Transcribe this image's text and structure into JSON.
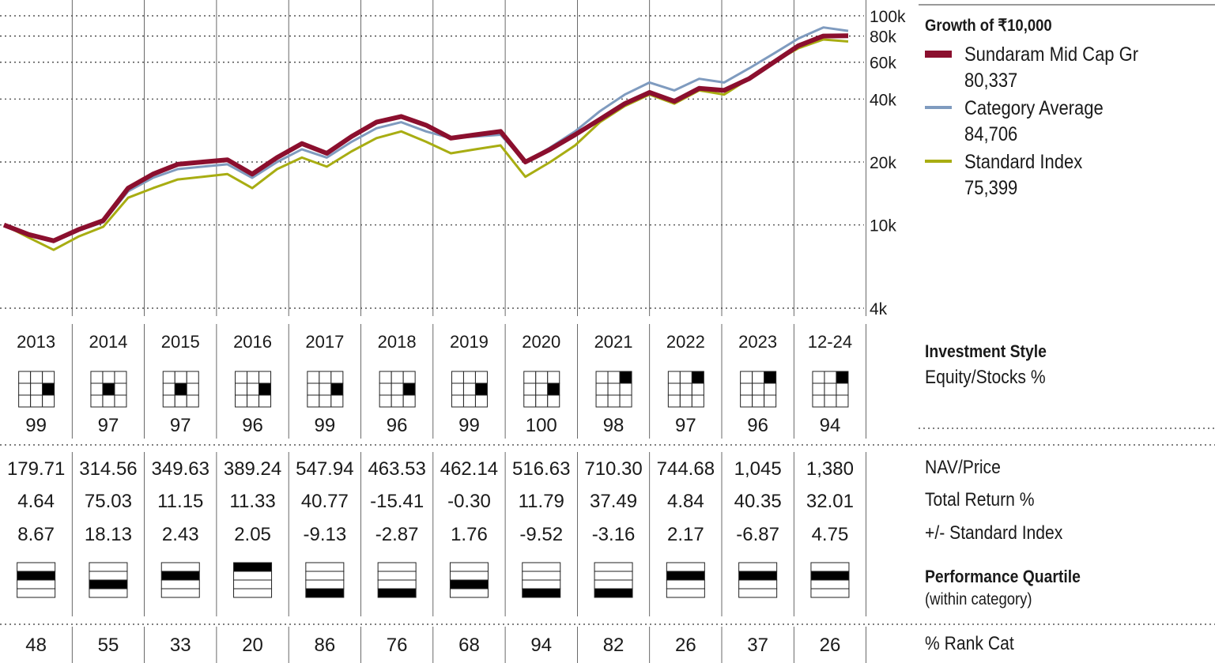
{
  "chart_data": {
    "type": "line",
    "title": "Growth of ₹10,000",
    "y_scale": "log",
    "ylim": [
      4000,
      100000
    ],
    "y_ticks": [
      100000,
      80000,
      60000,
      40000,
      20000,
      10000,
      4000
    ],
    "y_tick_labels": [
      "100k",
      "80k",
      "60k",
      "40k",
      "20k",
      "10k",
      "4k"
    ],
    "grid": "dotted horizontal at ticks, vertical year separators",
    "legend_placement": "right",
    "series": [
      {
        "name": "Sundaram Mid Cap Gr",
        "final_value": "80,337",
        "color": "#8b0f2e",
        "values": [
          10000,
          9000,
          8400,
          9500,
          10500,
          15000,
          17500,
          19500,
          20000,
          20500,
          17500,
          21000,
          24500,
          22000,
          26500,
          31000,
          33000,
          30000,
          26000,
          27000,
          28000,
          20000,
          23000,
          27000,
          32000,
          38000,
          43000,
          39000,
          45000,
          44000,
          50000,
          60000,
          72000,
          80000,
          80337
        ]
      },
      {
        "name": "Category Average",
        "final_value": "84,706",
        "color": "#7f9bbf",
        "values": [
          10000,
          8900,
          8300,
          9400,
          10300,
          14500,
          16800,
          18500,
          19000,
          19500,
          16800,
          20000,
          23000,
          21000,
          25000,
          29000,
          31000,
          28000,
          26000,
          26500,
          27000,
          20000,
          23500,
          28000,
          35000,
          42000,
          48000,
          44000,
          50000,
          48000,
          56000,
          66000,
          78000,
          88000,
          84706
        ]
      },
      {
        "name": "Standard Index",
        "final_value": "75,399",
        "color": "#a8ad12",
        "values": [
          10000,
          8700,
          7600,
          8800,
          9800,
          13500,
          15000,
          16500,
          17000,
          17500,
          15000,
          18500,
          21000,
          19000,
          22500,
          26000,
          28000,
          25000,
          22000,
          23000,
          24000,
          17000,
          20000,
          24000,
          31000,
          37000,
          42000,
          38000,
          44000,
          42000,
          50000,
          60000,
          70000,
          77000,
          75399
        ]
      }
    ]
  },
  "years": [
    "2013",
    "2014",
    "2015",
    "2016",
    "2017",
    "2018",
    "2019",
    "2020",
    "2021",
    "2022",
    "2023",
    "12-24"
  ],
  "style_box": [
    {
      "row": 1,
      "col": 2
    },
    {
      "row": 1,
      "col": 1
    },
    {
      "row": 1,
      "col": 1
    },
    {
      "row": 1,
      "col": 2
    },
    {
      "row": 1,
      "col": 2
    },
    {
      "row": 1,
      "col": 2
    },
    {
      "row": 1,
      "col": 2
    },
    {
      "row": 1,
      "col": 2
    },
    {
      "row": 0,
      "col": 2
    },
    {
      "row": 0,
      "col": 2
    },
    {
      "row": 0,
      "col": 2
    },
    {
      "row": 0,
      "col": 2
    }
  ],
  "equity_pct": [
    "99",
    "97",
    "97",
    "96",
    "99",
    "96",
    "99",
    "100",
    "98",
    "97",
    "96",
    "94"
  ],
  "nav": [
    "179.71",
    "314.56",
    "349.63",
    "389.24",
    "547.94",
    "463.53",
    "462.14",
    "516.63",
    "710.30",
    "744.68",
    "1,045",
    "1,380"
  ],
  "total_return": [
    "4.64",
    "75.03",
    "11.15",
    "11.33",
    "40.77",
    "-15.41",
    "-0.30",
    "11.79",
    "37.49",
    "4.84",
    "40.35",
    "32.01"
  ],
  "vs_index": [
    "8.67",
    "18.13",
    "2.43",
    "2.05",
    "-9.13",
    "-2.87",
    "1.76",
    "-9.52",
    "-3.16",
    "2.17",
    "-6.87",
    "4.75"
  ],
  "quartile": [
    2,
    3,
    2,
    1,
    4,
    4,
    3,
    4,
    4,
    2,
    2,
    2
  ],
  "rank_cat": [
    "48",
    "55",
    "33",
    "20",
    "86",
    "76",
    "68",
    "94",
    "82",
    "26",
    "37",
    "26"
  ],
  "labels": {
    "investment_style": "Investment Style",
    "equity_stocks": "Equity/Stocks %",
    "nav_price": "NAV/Price",
    "total_return": "Total Return %",
    "vs_index": "+/- Standard Index",
    "performance_quartile": "Performance Quartile",
    "within_category": "(within category)",
    "rank_cat": "% Rank Cat"
  }
}
